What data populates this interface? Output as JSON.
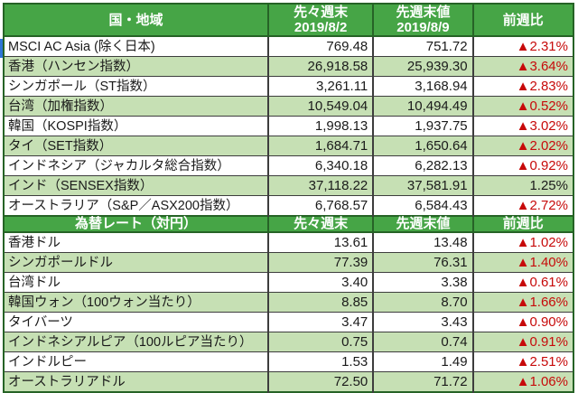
{
  "colors": {
    "header_green": "#46a546",
    "header_text": "#ffffff",
    "row_alt_green": "#c6e0b4",
    "row_white": "#ffffff",
    "border_dark_green": "#266326",
    "gridline": "#3d3d3d",
    "negative_red": "#c70a0a",
    "text_black": "#1a1a1a",
    "cell_cursor_blue": "#2e75d6"
  },
  "stock_table": {
    "header": {
      "region": "国・地域",
      "prev_week": "先々週末",
      "prev_week_date": "2019/8/2",
      "last_week": "先週末値",
      "last_week_date": "2019/8/9",
      "wow_change": "前週比"
    },
    "rows": [
      {
        "label": "MSCI AC Asia (除く日本)",
        "prev": "769.48",
        "last": "751.72",
        "change": "▲2.31%"
      },
      {
        "label": "香港（ハンセン指数）",
        "prev": "26,918.58",
        "last": "25,939.30",
        "change": "▲3.64%"
      },
      {
        "label": "シンガポール（ST指数）",
        "prev": "3,261.11",
        "last": "3,168.94",
        "change": "▲2.83%"
      },
      {
        "label": "台湾（加権指数）",
        "prev": "10,549.04",
        "last": "10,494.49",
        "change": "▲0.52%"
      },
      {
        "label": "韓国（KOSPI指数）",
        "prev": "1,998.13",
        "last": "1,937.75",
        "change": "▲3.02%"
      },
      {
        "label": "タイ（SET指数）",
        "prev": "1,684.71",
        "last": "1,650.64",
        "change": "▲2.02%"
      },
      {
        "label": "インドネシア（ジャカルタ総合指数）",
        "prev": "6,340.18",
        "last": "6,282.13",
        "change": "▲0.92%"
      },
      {
        "label": "インド（SENSEX指数）",
        "prev": "37,118.22",
        "last": "37,581.91",
        "change": "1.25%"
      },
      {
        "label": "オーストラリア（S&P／ASX200指数）",
        "prev": "6,768.57",
        "last": "6,584.43",
        "change": "▲2.72%"
      }
    ]
  },
  "fx_table": {
    "header": {
      "region": "為替レート（対円）",
      "prev_week": "先々週末",
      "last_week": "先週末値",
      "wow_change": "前週比"
    },
    "rows": [
      {
        "label": "香港ドル",
        "prev": "13.61",
        "last": "13.48",
        "change": "▲1.02%"
      },
      {
        "label": "シンガポールドル",
        "prev": "77.39",
        "last": "76.31",
        "change": "▲1.40%"
      },
      {
        "label": "台湾ドル",
        "prev": "3.40",
        "last": "3.38",
        "change": "▲0.61%"
      },
      {
        "label": "韓国ウォン（100ウォン当たり）",
        "prev": "8.85",
        "last": "8.70",
        "change": "▲1.66%"
      },
      {
        "label": "タイバーツ",
        "prev": "3.47",
        "last": "3.43",
        "change": "▲0.90%"
      },
      {
        "label": "インドネシアルピア（100ルピア当たり）",
        "prev": "0.75",
        "last": "0.74",
        "change": "▲0.91%"
      },
      {
        "label": "インドルピー",
        "prev": "1.53",
        "last": "1.49",
        "change": "▲2.51%"
      },
      {
        "label": "オーストラリアドル",
        "prev": "72.50",
        "last": "71.72",
        "change": "▲1.06%"
      }
    ]
  }
}
